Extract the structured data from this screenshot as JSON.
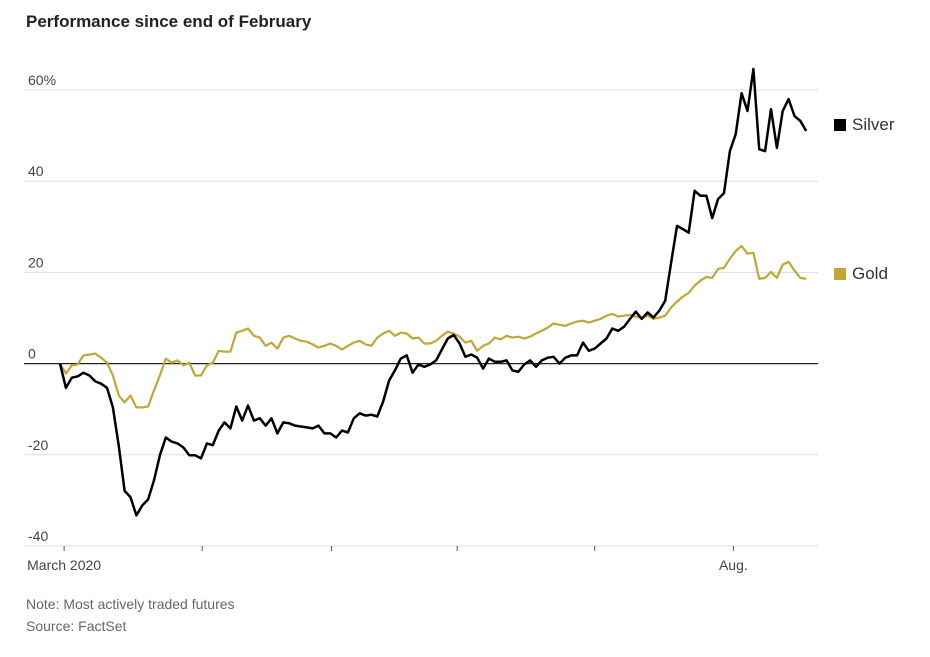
{
  "chart_data": {
    "type": "line",
    "title": "Performance since end of February",
    "xlabel": "",
    "ylabel": "",
    "ylim": [
      -40,
      60
    ],
    "xlim": [
      0,
      129
    ],
    "y_ticks": [
      {
        "value": 60,
        "label": "60%"
      },
      {
        "value": 40,
        "label": "40"
      },
      {
        "value": 20,
        "label": "20"
      },
      {
        "value": 0,
        "label": "0"
      },
      {
        "value": -20,
        "label": "-20"
      },
      {
        "value": -40,
        "label": "-40"
      }
    ],
    "x_ticks": [
      {
        "value": 0.7,
        "label": "March 2020"
      },
      {
        "value": 24.2,
        "label": ""
      },
      {
        "value": 46.2,
        "label": ""
      },
      {
        "value": 67.6,
        "label": ""
      },
      {
        "value": 91,
        "label": ""
      },
      {
        "value": 114.6,
        "label": "Aug."
      }
    ],
    "grid": true,
    "legend_placement": "right",
    "series": [
      {
        "name": "Silver",
        "color": "#000000",
        "values": [
          0,
          -5.3,
          -3.1,
          -2.8,
          -2.0,
          -2.6,
          -3.9,
          -4.4,
          -5.3,
          -9.6,
          -18.1,
          -27.9,
          -29.3,
          -33.3,
          -31.1,
          -29.8,
          -25.6,
          -20.1,
          -16.2,
          -17.1,
          -17.5,
          -18.4,
          -20.1,
          -20.1,
          -20.8,
          -17.5,
          -17.9,
          -14.7,
          -12.9,
          -14.2,
          -9.4,
          -12.5,
          -9.2,
          -12.5,
          -12.0,
          -13.6,
          -12.0,
          -15.3,
          -12.9,
          -13.1,
          -13.6,
          -13.8,
          -14.0,
          -14.2,
          -13.6,
          -15.3,
          -15.3,
          -16.2,
          -14.7,
          -15.1,
          -12.0,
          -10.9,
          -11.4,
          -11.2,
          -11.6,
          -8.3,
          -3.7,
          -1.5,
          1.1,
          1.8,
          -2.0,
          -0.2,
          -0.7,
          -0.2,
          0.7,
          3.1,
          5.5,
          6.3,
          4.4,
          1.5,
          2.0,
          1.3,
          -1.1,
          1.1,
          0.4,
          0.4,
          0.7,
          -1.5,
          -1.8,
          -0.2,
          0.7,
          -0.7,
          0.7,
          1.3,
          1.5,
          0,
          1.3,
          1.8,
          1.8,
          4.6,
          2.8,
          3.3,
          4.4,
          5.5,
          7.7,
          7.2,
          8.1,
          9.8,
          11.4,
          9.8,
          11.2,
          10.1,
          11.6,
          13.8,
          22.1,
          30.2,
          29.5,
          28.7,
          37.9,
          36.8,
          36.8,
          31.9,
          36.1,
          37.4,
          46.6,
          50.3,
          59.3,
          55.4,
          64.6,
          47.0,
          46.6,
          55.8,
          47.3,
          55.4,
          58.0,
          54.3,
          53.2,
          51.0
        ]
      },
      {
        "name": "Gold",
        "color": "#c2a636",
        "values": [
          0,
          -2.2,
          -0.4,
          -0.2,
          1.8,
          2.0,
          2.2,
          1.3,
          0.2,
          -2.6,
          -7.0,
          -8.5,
          -7.0,
          -9.6,
          -9.6,
          -9.4,
          -5.9,
          -2.6,
          1.1,
          0.2,
          0.7,
          -0.4,
          0.2,
          -2.6,
          -2.6,
          -0.4,
          0.2,
          2.8,
          2.6,
          2.6,
          6.8,
          7.2,
          7.7,
          6.1,
          5.7,
          3.9,
          4.6,
          3.3,
          5.7,
          6.1,
          5.5,
          5.0,
          4.8,
          4.2,
          3.5,
          3.9,
          4.4,
          3.9,
          3.1,
          3.9,
          4.6,
          5.0,
          4.2,
          3.9,
          5.7,
          6.6,
          7.2,
          6.1,
          6.8,
          6.6,
          5.5,
          5.7,
          4.4,
          4.4,
          5.0,
          6.1,
          7.0,
          6.6,
          5.9,
          4.6,
          5.0,
          2.8,
          3.9,
          4.4,
          5.7,
          5.3,
          6.1,
          5.7,
          5.9,
          5.5,
          5.9,
          6.6,
          7.2,
          7.9,
          8.8,
          8.5,
          8.3,
          8.8,
          9.2,
          9.4,
          9.0,
          9.4,
          9.8,
          10.5,
          10.9,
          10.3,
          10.5,
          10.7,
          10.3,
          10.1,
          10.5,
          9.8,
          10.1,
          10.5,
          12.3,
          13.6,
          14.7,
          15.5,
          17.1,
          18.2,
          19.0,
          18.8,
          20.8,
          21.0,
          23.0,
          24.7,
          25.8,
          24.1,
          24.3,
          18.6,
          18.8,
          20.1,
          18.8,
          21.7,
          22.3,
          20.4,
          18.8,
          18.6
        ]
      }
    ]
  },
  "notes": {
    "note": "Note: Most actively traded futures",
    "source": "Source: FactSet"
  }
}
